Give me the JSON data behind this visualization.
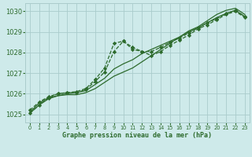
{
  "title": "Graphe pression niveau de la mer (hPa)",
  "bg_color": "#ceeaea",
  "grid_color": "#aacccc",
  "line_color": "#2d6b2d",
  "xlim": [
    -0.5,
    23.5
  ],
  "ylim": [
    1024.6,
    1030.4
  ],
  "yticks": [
    1025,
    1026,
    1027,
    1028,
    1029,
    1030
  ],
  "xticks": [
    0,
    1,
    2,
    3,
    4,
    5,
    6,
    7,
    8,
    9,
    10,
    11,
    12,
    13,
    14,
    15,
    16,
    17,
    18,
    19,
    20,
    21,
    22,
    23
  ],
  "series": [
    {
      "y": [
        1025.1,
        1025.55,
        1025.8,
        1025.9,
        1026.0,
        1026.05,
        1026.15,
        1026.45,
        1026.75,
        1027.2,
        1027.45,
        1027.65,
        1027.95,
        1028.15,
        1028.35,
        1028.55,
        1028.75,
        1029.0,
        1029.2,
        1029.45,
        1029.7,
        1029.9,
        1030.05,
        1029.75
      ],
      "linestyle": "-",
      "linewidth": 0.9,
      "marker": null,
      "markersize": 0
    },
    {
      "y": [
        1025.05,
        1025.45,
        1025.75,
        1025.9,
        1025.95,
        1025.95,
        1026.05,
        1026.25,
        1026.55,
        1026.85,
        1027.05,
        1027.25,
        1027.55,
        1027.85,
        1028.15,
        1028.45,
        1028.75,
        1029.05,
        1029.25,
        1029.55,
        1029.85,
        1030.05,
        1030.15,
        1029.85
      ],
      "linestyle": "-",
      "linewidth": 0.9,
      "marker": null,
      "markersize": 0
    },
    {
      "y": [
        1025.2,
        1025.6,
        1025.85,
        1026.0,
        1026.05,
        1026.1,
        1026.25,
        1026.7,
        1027.25,
        1028.45,
        1028.55,
        1028.15,
        1028.05,
        1028.05,
        1028.25,
        1028.5,
        1028.7,
        1028.95,
        1029.2,
        1029.45,
        1029.65,
        1029.9,
        1030.05,
        1029.75
      ],
      "linestyle": "--",
      "linewidth": 0.9,
      "marker": "D",
      "markersize": 2.2
    },
    {
      "y": [
        1025.05,
        1025.45,
        1025.8,
        1026.0,
        1026.05,
        1026.05,
        1026.2,
        1026.6,
        1027.05,
        1028.05,
        1028.55,
        1028.25,
        1028.05,
        1027.85,
        1028.05,
        1028.35,
        1028.6,
        1028.85,
        1029.15,
        1029.35,
        1029.6,
        1029.85,
        1030.0,
        1029.7
      ],
      "linestyle": "--",
      "linewidth": 0.9,
      "marker": "D",
      "markersize": 2.2
    }
  ]
}
